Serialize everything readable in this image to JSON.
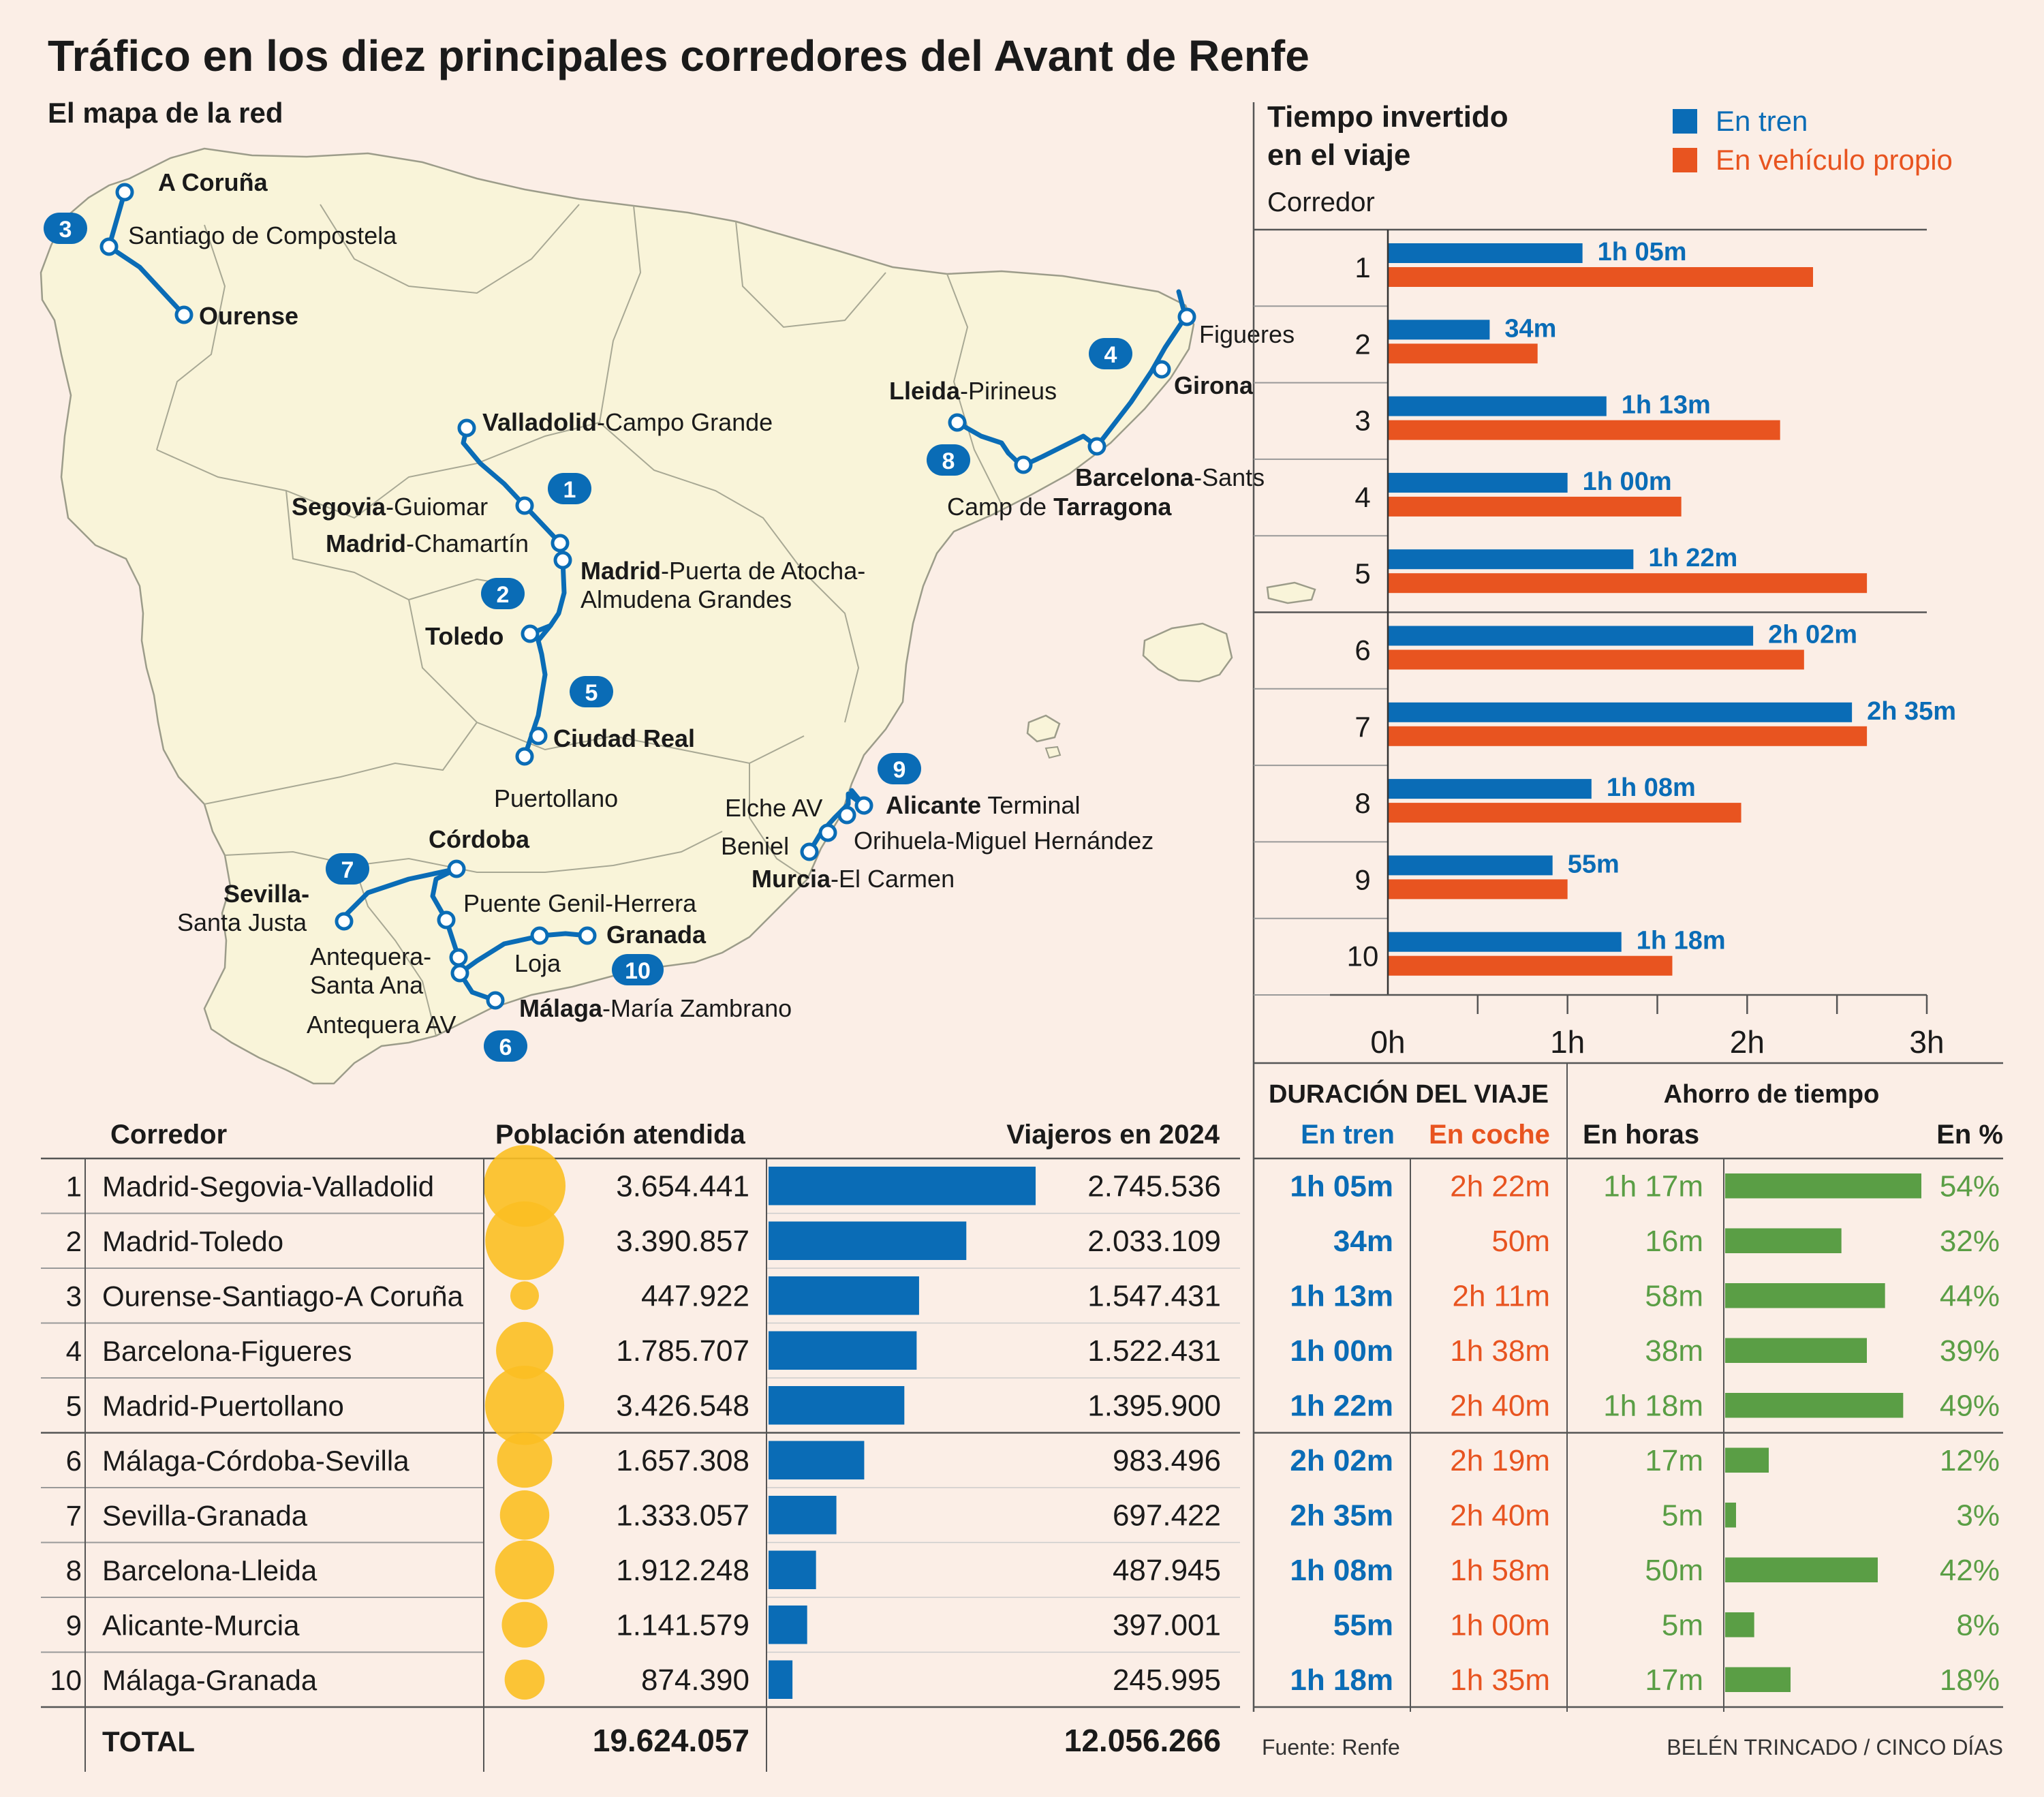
{
  "title": "Tráfico en los diez principales corredores del Avant de Renfe",
  "map": {
    "title": "El mapa de la red",
    "stations": {
      "coruna": "A Coruña",
      "santiago": "Santiago de Compostela",
      "ourense": "Ourense",
      "valladolid_b": "Valladolid",
      "valladolid_r": "-Campo Grande",
      "segovia_b": "Segovia",
      "segovia_r": "-Guiomar",
      "chamartin_b": "Madrid",
      "chamartin_r": "-Chamartín",
      "atocha_b": "Madrid",
      "atocha_r": "-Puerta de Atocha-",
      "atocha_2": "Almudena Grandes",
      "toledo": "Toledo",
      "ciudadreal": "Ciudad Real",
      "puertollano": "Puertollano",
      "figueres": "Figueres",
      "girona": "Girona",
      "lleida_b": "Lleida",
      "lleida_r": "-Pirineus",
      "sants_b": "Barcelona",
      "sants_r": "-Sants",
      "tarragona_r": "Camp de ",
      "tarragona_b": "Tarragona",
      "alicante_b": "Alicante",
      "alicante_r": " Terminal",
      "elche": "Elche AV",
      "orihuela": "Orihuela-Miguel Hernández",
      "beniel": "Beniel",
      "murcia_b": "Murcia",
      "murcia_r": "-El Carmen",
      "cordoba": "Córdoba",
      "sevilla_1": "Sevilla-",
      "sevilla_2": "Santa Justa",
      "puentegenil": "Puente Genil-Herrera",
      "granada": "Granada",
      "antequera_1": "Antequera-",
      "antequera_2": "Santa Ana",
      "loja": "Loja",
      "antequera_av": "Antequera AV",
      "malaga_b": "Málaga",
      "malaga_r": "-María Zambrano"
    },
    "badges": [
      "1",
      "2",
      "3",
      "4",
      "5",
      "6",
      "7",
      "8",
      "9",
      "10"
    ]
  },
  "colors": {
    "train": "#0a6cb6",
    "car": "#e85420",
    "savings": "#5a9e45",
    "population": "#fbbf22",
    "land": "#f9f4d9",
    "background": "#fbeee6"
  },
  "chart_data": [
    {
      "type": "bar",
      "title": "Tiempo invertido en el viaje",
      "category_label": "Corredor",
      "categories": [
        "1",
        "2",
        "3",
        "4",
        "5",
        "6",
        "7",
        "8",
        "9",
        "10"
      ],
      "series": [
        {
          "name": "En tren",
          "values_min": [
            65,
            34,
            73,
            60,
            82,
            122,
            155,
            68,
            55,
            78
          ],
          "labels": [
            "1h 05m",
            "34m",
            "1h 13m",
            "1h 00m",
            "1h 22m",
            "2h 02m",
            "2h 35m",
            "1h 08m",
            "55m",
            "1h 18m"
          ]
        },
        {
          "name": "En vehículo propio",
          "values_min": [
            142,
            50,
            131,
            98,
            160,
            139,
            160,
            118,
            60,
            95
          ]
        }
      ],
      "x_ticks": [
        "0h",
        "1h",
        "2h",
        "3h"
      ],
      "xlim_min": [
        0,
        180
      ]
    },
    {
      "type": "table",
      "columns": [
        "Corredor",
        "Población atendida",
        "Viajeros en 2024"
      ],
      "rows": [
        {
          "n": "1",
          "corridor": "Madrid-Segovia-Valladolid",
          "population": "3.654.441",
          "population_value": 3654441,
          "travelers": "2.745.536",
          "travelers_value": 2745536
        },
        {
          "n": "2",
          "corridor": "Madrid-Toledo",
          "population": "3.390.857",
          "population_value": 3390857,
          "travelers": "2.033.109",
          "travelers_value": 2033109
        },
        {
          "n": "3",
          "corridor": "Ourense-Santiago-A Coruña",
          "population": "447.922",
          "population_value": 447922,
          "travelers": "1.547.431",
          "travelers_value": 1547431
        },
        {
          "n": "4",
          "corridor": "Barcelona-Figueres",
          "population": "1.785.707",
          "population_value": 1785707,
          "travelers": "1.522.431",
          "travelers_value": 1522431
        },
        {
          "n": "5",
          "corridor": "Madrid-Puertollano",
          "population": "3.426.548",
          "population_value": 3426548,
          "travelers": "1.395.900",
          "travelers_value": 1395900
        },
        {
          "n": "6",
          "corridor": "Málaga-Córdoba-Sevilla",
          "population": "1.657.308",
          "population_value": 1657308,
          "travelers": "983.496",
          "travelers_value": 983496
        },
        {
          "n": "7",
          "corridor": "Sevilla-Granada",
          "population": "1.333.057",
          "population_value": 1333057,
          "travelers": "697.422",
          "travelers_value": 697422
        },
        {
          "n": "8",
          "corridor": "Barcelona-Lleida",
          "population": "1.912.248",
          "population_value": 1912248,
          "travelers": "487.945",
          "travelers_value": 487945
        },
        {
          "n": "9",
          "corridor": "Alicante-Murcia",
          "population": "1.141.579",
          "population_value": 1141579,
          "travelers": "397.001",
          "travelers_value": 397001
        },
        {
          "n": "10",
          "corridor": "Málaga-Granada",
          "population": "874.390",
          "population_value": 874390,
          "travelers": "245.995",
          "travelers_value": 245995
        }
      ],
      "total_label": "TOTAL",
      "total_population": "19.624.057",
      "total_travelers": "12.056.266"
    },
    {
      "type": "table",
      "title": "DURACIÓN DEL VIAJE",
      "savings_title": "Ahorro de tiempo",
      "columns": [
        "En tren",
        "En coche",
        "En horas",
        "En %"
      ],
      "rows": [
        {
          "train": "1h 05m",
          "car": "2h 22m",
          "hours": "1h 17m",
          "pct": "54%",
          "pct_value": 54
        },
        {
          "train": "34m",
          "car": "50m",
          "hours": "16m",
          "pct": "32%",
          "pct_value": 32
        },
        {
          "train": "1h 13m",
          "car": "2h 11m",
          "hours": "58m",
          "pct": "44%",
          "pct_value": 44
        },
        {
          "train": "1h 00m",
          "car": "1h 38m",
          "hours": "38m",
          "pct": "39%",
          "pct_value": 39
        },
        {
          "train": "1h 22m",
          "car": "2h 40m",
          "hours": "1h 18m",
          "pct": "49%",
          "pct_value": 49
        },
        {
          "train": "2h 02m",
          "car": "2h 19m",
          "hours": "17m",
          "pct": "12%",
          "pct_value": 12
        },
        {
          "train": "2h 35m",
          "car": "2h 40m",
          "hours": "5m",
          "pct": "3%",
          "pct_value": 3
        },
        {
          "train": "1h 08m",
          "car": "1h 58m",
          "hours": "50m",
          "pct": "42%",
          "pct_value": 42
        },
        {
          "train": "55m",
          "car": "1h 00m",
          "hours": "5m",
          "pct": "8%",
          "pct_value": 8
        },
        {
          "train": "1h 18m",
          "car": "1h 35m",
          "hours": "17m",
          "pct": "18%",
          "pct_value": 18
        }
      ]
    }
  ],
  "footer": {
    "source": "Fuente: Renfe",
    "credit": "BELÉN TRINCADO / CINCO DÍAS"
  }
}
